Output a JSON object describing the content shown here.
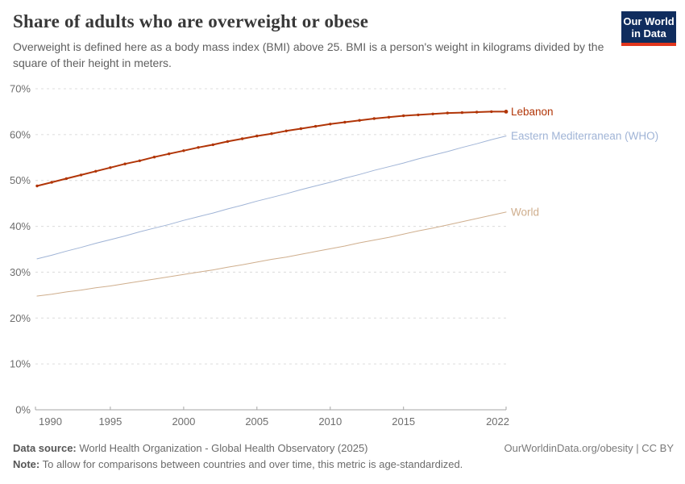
{
  "header": {
    "title": "Share of adults who are overweight or obese",
    "subtitle": "Overweight is defined here as a body mass index (BMI) above 25. BMI is a person's weight in kilograms divided by the square of their height in meters.",
    "logo": {
      "line1": "Our World",
      "line2": "in Data",
      "bg_color": "#102d5e",
      "stripe_color": "#e2361d"
    }
  },
  "chart_data": {
    "type": "line",
    "title": "Share of adults who are overweight or obese",
    "x": [
      1990,
      1991,
      1992,
      1993,
      1994,
      1995,
      1996,
      1997,
      1998,
      1999,
      2000,
      2001,
      2002,
      2003,
      2004,
      2005,
      2006,
      2007,
      2008,
      2009,
      2010,
      2011,
      2012,
      2013,
      2014,
      2015,
      2016,
      2017,
      2018,
      2019,
      2020,
      2021,
      2022
    ],
    "series": [
      {
        "name": "Lebanon",
        "color": "#b13507",
        "line_width": 2,
        "markers": true,
        "values": [
          48.8,
          49.6,
          50.4,
          51.2,
          52.0,
          52.8,
          53.6,
          54.3,
          55.1,
          55.8,
          56.5,
          57.2,
          57.8,
          58.5,
          59.1,
          59.7,
          60.2,
          60.8,
          61.3,
          61.8,
          62.3,
          62.7,
          63.1,
          63.5,
          63.8,
          64.1,
          64.3,
          64.5,
          64.7,
          64.8,
          64.9,
          65.0,
          65.0
        ]
      },
      {
        "name": "Eastern Mediterranean (WHO)",
        "color": "#a0b4d6",
        "line_width": 1,
        "markers": false,
        "values": [
          32.9,
          33.7,
          34.6,
          35.4,
          36.3,
          37.1,
          37.9,
          38.8,
          39.6,
          40.4,
          41.3,
          42.1,
          42.9,
          43.8,
          44.6,
          45.5,
          46.3,
          47.1,
          48.0,
          48.8,
          49.6,
          50.5,
          51.3,
          52.2,
          53.0,
          53.8,
          54.7,
          55.5,
          56.3,
          57.2,
          58.0,
          58.9,
          59.7
        ]
      },
      {
        "name": "World",
        "color": "#cfae8d",
        "line_width": 1,
        "markers": false,
        "values": [
          24.8,
          25.2,
          25.7,
          26.1,
          26.6,
          27.0,
          27.5,
          28.0,
          28.5,
          29.0,
          29.5,
          30.0,
          30.5,
          31.1,
          31.6,
          32.2,
          32.8,
          33.3,
          33.9,
          34.5,
          35.1,
          35.7,
          36.4,
          37.0,
          37.6,
          38.3,
          39.0,
          39.6,
          40.3,
          41.0,
          41.7,
          42.4,
          43.1
        ]
      }
    ],
    "ylim": [
      0,
      70
    ],
    "yticks": [
      0,
      10,
      20,
      30,
      40,
      50,
      60,
      70
    ],
    "ytick_suffix": "%",
    "xticks": [
      1990,
      1995,
      2000,
      2005,
      2010,
      2015,
      2022
    ],
    "grid": "horizontal-dashed",
    "legend_position": "right-of-line-ends",
    "grid_color": "#dcdcdc",
    "axis_color": "#a6a6a6",
    "tick_label_color": "#6e6e6e"
  },
  "footer": {
    "datasource_label": "Data source:",
    "datasource_text": " World Health Organization - Global Health Observatory (2025)",
    "note_label": "Note:",
    "note_text": " To allow for comparisons between countries and over time, this metric is age-standardized.",
    "attribution": "OurWorldinData.org/obesity | CC BY"
  }
}
